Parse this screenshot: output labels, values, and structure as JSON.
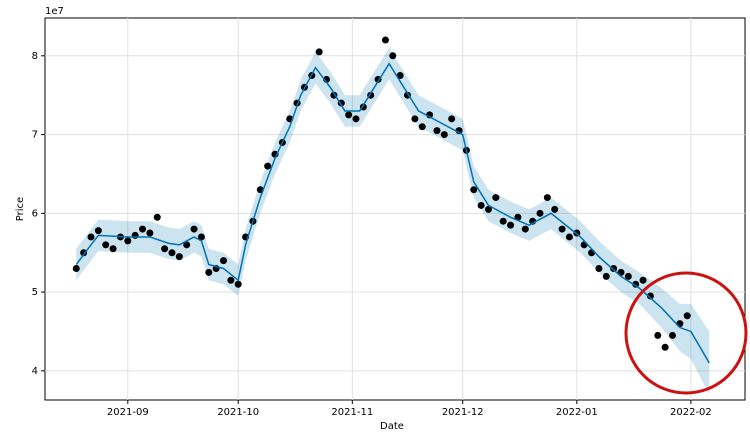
{
  "chart_data": {
    "type": "line",
    "xlabel": "Date",
    "ylabel": "Price",
    "y_offset_label": "1e7",
    "grid": true,
    "xlim": [
      -22.5,
      167.7
    ],
    "ylim": [
      3.63,
      8.48
    ],
    "yticks": [
      4,
      5,
      6,
      7,
      8
    ],
    "xticks": [
      {
        "value": 0,
        "label": "2021-09"
      },
      {
        "value": 30,
        "label": "2021-10"
      },
      {
        "value": 61,
        "label": "2021-11"
      },
      {
        "value": 91,
        "label": "2021-12"
      },
      {
        "value": 122,
        "label": "2022-01"
      },
      {
        "value": 153,
        "label": "2022-02"
      }
    ],
    "forecast": {
      "color": "#0072b2",
      "x": [
        -14,
        -10,
        -8,
        0,
        6,
        11,
        14,
        18,
        20,
        22,
        26,
        30,
        32,
        36,
        40,
        44,
        47,
        51,
        55,
        59,
        63,
        67,
        71,
        75,
        79,
        85,
        91,
        94,
        98,
        104,
        109,
        115,
        119,
        123,
        128,
        134,
        139,
        145,
        150,
        153,
        158
      ],
      "values": [
        5.35,
        5.6,
        5.72,
        5.7,
        5.7,
        5.62,
        5.6,
        5.7,
        5.65,
        5.35,
        5.3,
        5.15,
        5.6,
        6.2,
        6.7,
        7.1,
        7.5,
        7.85,
        7.6,
        7.3,
        7.3,
        7.6,
        7.9,
        7.6,
        7.3,
        7.15,
        7.0,
        6.4,
        6.1,
        5.95,
        5.85,
        6.0,
        5.85,
        5.7,
        5.45,
        5.2,
        5.05,
        4.8,
        4.55,
        4.5,
        4.1
      ],
      "lower": [
        5.15,
        5.4,
        5.52,
        5.5,
        5.5,
        5.42,
        5.4,
        5.5,
        5.45,
        5.15,
        5.1,
        4.95,
        5.4,
        6.0,
        6.5,
        6.9,
        7.3,
        7.65,
        7.4,
        7.1,
        7.1,
        7.4,
        7.7,
        7.4,
        7.1,
        6.95,
        6.8,
        6.2,
        5.9,
        5.75,
        5.65,
        5.8,
        5.65,
        5.5,
        5.25,
        5.0,
        4.85,
        4.55,
        4.25,
        4.15,
        3.7
      ],
      "upper": [
        5.55,
        5.8,
        5.92,
        5.9,
        5.9,
        5.82,
        5.8,
        5.9,
        5.85,
        5.55,
        5.5,
        5.35,
        5.8,
        6.4,
        6.9,
        7.3,
        7.7,
        8.05,
        7.8,
        7.5,
        7.5,
        7.8,
        8.1,
        7.8,
        7.5,
        7.35,
        7.2,
        6.6,
        6.3,
        6.15,
        6.05,
        6.2,
        6.05,
        5.9,
        5.65,
        5.4,
        5.25,
        5.05,
        4.85,
        4.85,
        4.5
      ]
    },
    "observed": {
      "color": "#000000",
      "x": [
        -14,
        -12,
        -10,
        -8,
        -6,
        -4,
        -2,
        0,
        2,
        4,
        6,
        8,
        10,
        12,
        14,
        16,
        18,
        20,
        22,
        24,
        26,
        28,
        30,
        32,
        34,
        36,
        38,
        40,
        42,
        44,
        46,
        48,
        50,
        52,
        54,
        56,
        58,
        60,
        62,
        64,
        66,
        68,
        70,
        72,
        74,
        76,
        78,
        80,
        82,
        84,
        86,
        88,
        90,
        92,
        94,
        96,
        98,
        100,
        102,
        104,
        106,
        108,
        110,
        112,
        114,
        116,
        118,
        120,
        122,
        124,
        126,
        128,
        130,
        132,
        134,
        136,
        138,
        140,
        142,
        144,
        146,
        148,
        150,
        152
      ],
      "values": [
        5.3,
        5.5,
        5.7,
        5.78,
        5.6,
        5.55,
        5.7,
        5.65,
        5.72,
        5.8,
        5.75,
        5.95,
        5.55,
        5.5,
        5.45,
        5.6,
        5.8,
        5.7,
        5.25,
        5.3,
        5.4,
        5.15,
        5.1,
        5.7,
        5.9,
        6.3,
        6.6,
        6.75,
        6.9,
        7.2,
        7.4,
        7.6,
        7.75,
        8.05,
        7.7,
        7.5,
        7.4,
        7.25,
        7.2,
        7.35,
        7.5,
        7.7,
        8.2,
        8.0,
        7.75,
        7.5,
        7.2,
        7.1,
        7.25,
        7.05,
        7.0,
        7.2,
        7.05,
        6.8,
        6.3,
        6.1,
        6.05,
        6.2,
        5.9,
        5.85,
        5.95,
        5.8,
        5.9,
        6.0,
        6.2,
        6.05,
        5.8,
        5.7,
        5.75,
        5.6,
        5.5,
        5.3,
        5.2,
        5.3,
        5.25,
        5.2,
        5.1,
        5.15,
        4.95,
        4.45,
        4.3,
        4.45,
        4.6,
        4.7
      ]
    }
  }
}
